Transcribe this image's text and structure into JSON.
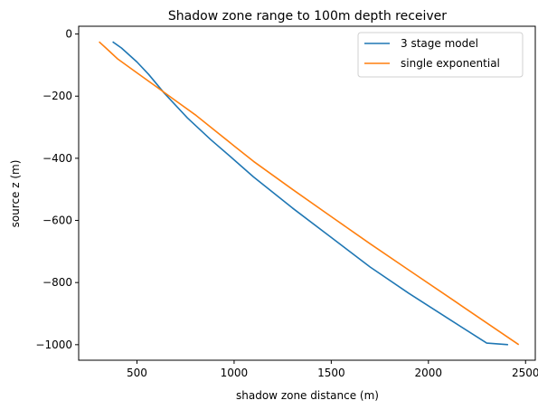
{
  "chart_data": {
    "type": "line",
    "title": "Shadow zone range to 100m depth receiver",
    "xlabel": "shadow zone distance (m)",
    "ylabel": "source z (m)",
    "xlim": [
      200,
      2550
    ],
    "ylim": [
      -1050,
      25
    ],
    "xticks": [
      500,
      1000,
      1500,
      2000,
      2500
    ],
    "xtick_labels": [
      "500",
      "1000",
      "1500",
      "2000",
      "2500"
    ],
    "yticks": [
      0,
      -200,
      -400,
      -600,
      -800,
      -1000
    ],
    "ytick_labels": [
      "0",
      "−200",
      "−400",
      "−600",
      "−800",
      "−1000"
    ],
    "grid": false,
    "legend_position": "top-right",
    "series": [
      {
        "name": "3 stage model",
        "color": "#1f77b4",
        "x": [
          375,
          420,
          500,
          560,
          640,
          760,
          880,
          1000,
          1100,
          1300,
          1500,
          1700,
          1900,
          2100,
          2300,
          2410
        ],
        "y": [
          -25,
          -45,
          -90,
          -130,
          -190,
          -270,
          -340,
          -405,
          -460,
          -560,
          -655,
          -750,
          -835,
          -915,
          -995,
          -1000
        ]
      },
      {
        "name": "single exponential",
        "color": "#ff7f0e",
        "x": [
          305,
          340,
          400,
          500,
          600,
          700,
          800,
          900,
          1000,
          1100,
          1300,
          1500,
          1700,
          1900,
          2100,
          2300,
          2465
        ],
        "y": [
          -25,
          -45,
          -80,
          -125,
          -170,
          -215,
          -260,
          -310,
          -360,
          -410,
          -500,
          -588,
          -675,
          -760,
          -845,
          -930,
          -1000
        ]
      }
    ]
  }
}
